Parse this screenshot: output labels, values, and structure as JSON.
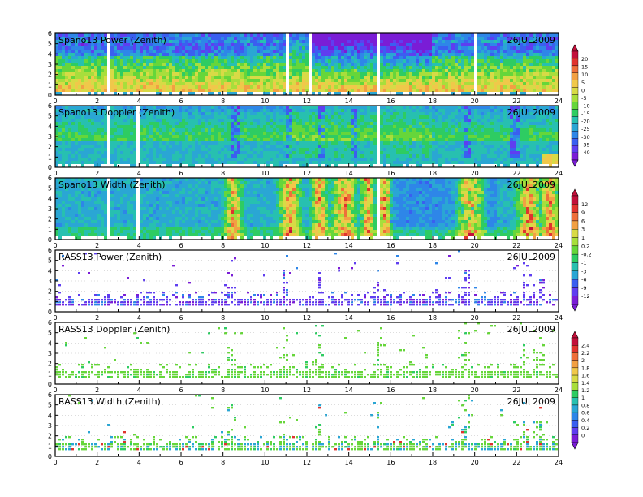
{
  "chart_data": [
    {
      "type": "heatmap",
      "title": "Spano13 Power (Zenith)",
      "date": "26JUL2009",
      "xlim": [
        0,
        24
      ],
      "ylim": [
        0,
        6
      ],
      "xticks": [
        "0",
        "2",
        "4",
        "6",
        "8",
        "10",
        "12",
        "14",
        "16",
        "18",
        "20",
        "22",
        "24"
      ],
      "yticks": [
        "0",
        "1",
        "2",
        "3",
        "4",
        "5",
        "6"
      ],
      "grid": false
    },
    {
      "type": "heatmap",
      "title": "Spano13 Doppler (Zenith)",
      "date": "26JUL2009",
      "xlim": [
        0,
        24
      ],
      "ylim": [
        0,
        6
      ],
      "xticks": [
        "0",
        "2",
        "4",
        "6",
        "8",
        "10",
        "12",
        "14",
        "16",
        "18",
        "20",
        "22",
        "24"
      ],
      "yticks": [
        "0",
        "1",
        "2",
        "3",
        "4",
        "5",
        "6"
      ],
      "grid": false
    },
    {
      "type": "heatmap",
      "title": "Spano13 Width (Zenith)",
      "date": "26JUL2009",
      "xlim": [
        0,
        24
      ],
      "ylim": [
        0,
        6
      ],
      "xticks": [
        "0",
        "2",
        "4",
        "6",
        "8",
        "10",
        "12",
        "14",
        "16",
        "18",
        "20",
        "22",
        "24"
      ],
      "yticks": [
        "0",
        "1",
        "2",
        "3",
        "4",
        "5",
        "6"
      ],
      "grid": false
    },
    {
      "type": "heatmap",
      "title": "RASS13 Power (Zenith)",
      "date": "26JUL2009",
      "xlim": [
        0,
        24
      ],
      "ylim": [
        0,
        6
      ],
      "xticks": [
        "0",
        "2",
        "4",
        "6",
        "8",
        "10",
        "12",
        "14",
        "16",
        "18",
        "20",
        "22",
        "24"
      ],
      "yticks": [
        "0",
        "1",
        "2",
        "3",
        "4",
        "5",
        "6"
      ],
      "grid": true
    },
    {
      "type": "heatmap",
      "title": "RASS13 Doppler (Zenith)",
      "date": "26JUL2009",
      "xlim": [
        0,
        24
      ],
      "ylim": [
        0,
        6
      ],
      "xticks": [
        "0",
        "2",
        "4",
        "6",
        "8",
        "10",
        "12",
        "14",
        "16",
        "18",
        "20",
        "22",
        "24"
      ],
      "yticks": [
        "0",
        "1",
        "2",
        "3",
        "4",
        "5",
        "6"
      ],
      "grid": true
    },
    {
      "type": "heatmap",
      "title": "RASS13 Width (Zenith)",
      "date": "26JUL2009",
      "xlim": [
        0,
        24
      ],
      "ylim": [
        0,
        6
      ],
      "xticks": [
        "0",
        "2",
        "4",
        "6",
        "8",
        "10",
        "12",
        "14",
        "16",
        "18",
        "20",
        "22",
        "24"
      ],
      "yticks": [
        "0",
        "1",
        "2",
        "3",
        "4",
        "5",
        "6"
      ],
      "grid": true
    }
  ],
  "colorbars": [
    {
      "labels": [
        "20",
        "15",
        "10",
        "5",
        "0",
        "-5",
        "-10",
        "-15",
        "-20",
        "-25",
        "-30",
        "-35",
        "-40"
      ]
    },
    {
      "labels": [
        "12",
        "9",
        "6",
        "3",
        "1",
        "0.2",
        "-0.2",
        "-1",
        "-3",
        "-6",
        "-9",
        "-12"
      ]
    },
    {
      "labels": [
        "2.4",
        "2.2",
        "2",
        "1.8",
        "1.6",
        "1.4",
        "1.2",
        "1",
        "0.8",
        "0.6",
        "0.4",
        "0.2",
        "0"
      ]
    }
  ],
  "palette": [
    "#7a1dd6",
    "#5f3ef0",
    "#3a5ff0",
    "#2e86e8",
    "#2aa6d4",
    "#27c0b0",
    "#2ecc62",
    "#66d63a",
    "#a8de3c",
    "#d8da46",
    "#f0c84a",
    "#f2a043",
    "#ee6f3a",
    "#e0332e",
    "#c2103a"
  ]
}
